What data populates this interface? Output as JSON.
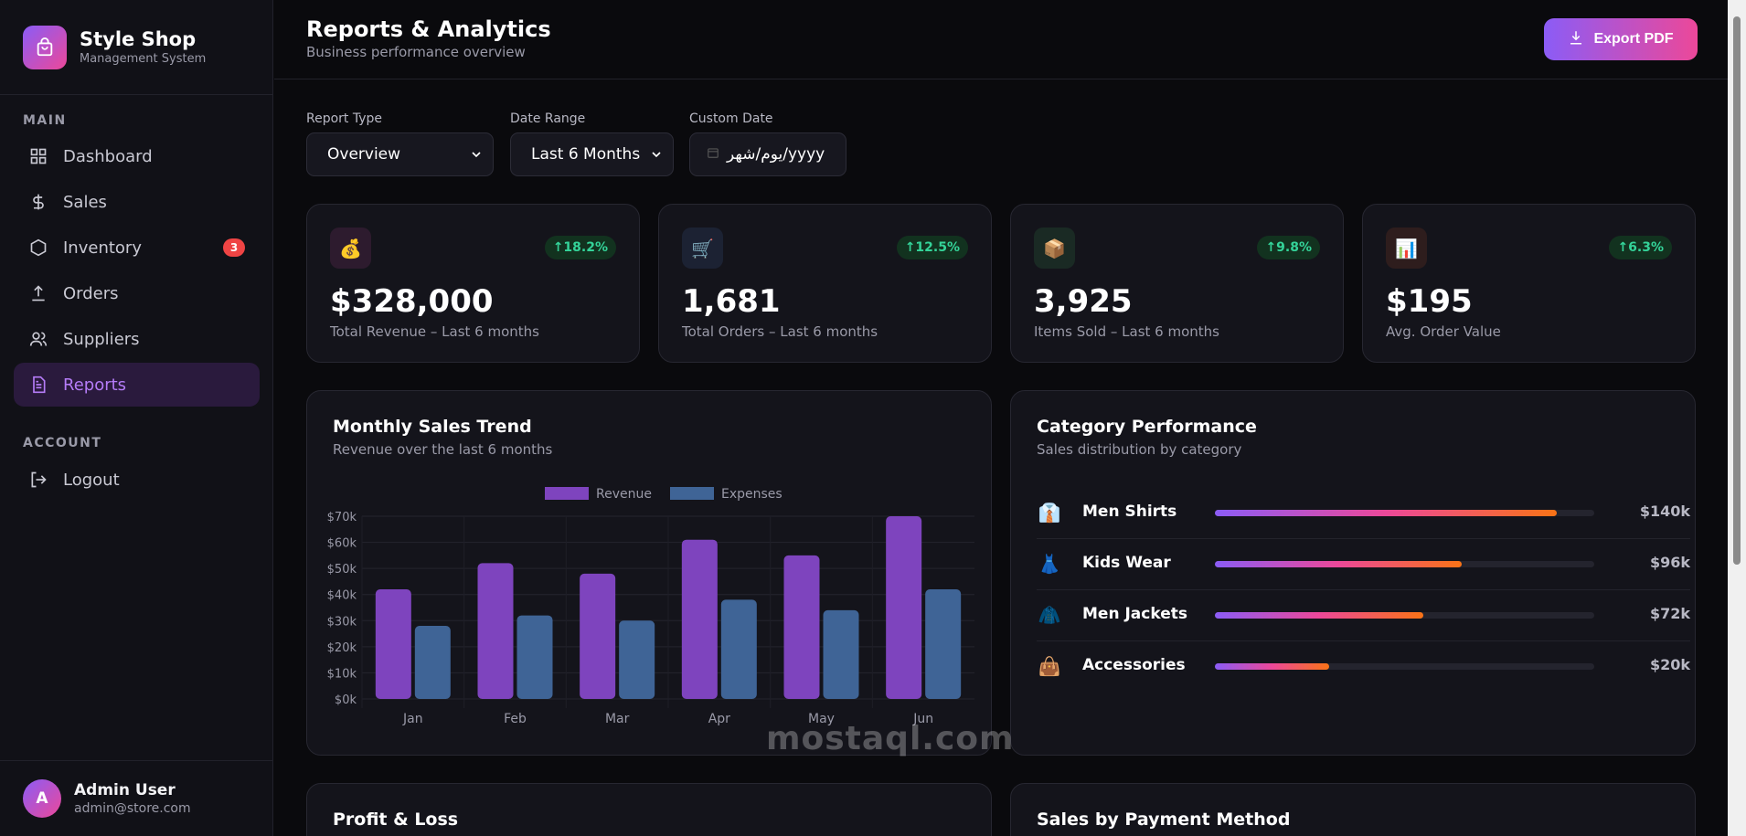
{
  "brand": {
    "name": "Style Shop",
    "subtitle": "Management System"
  },
  "nav": {
    "main_label": "MAIN",
    "account_label": "ACCOUNT",
    "items": [
      {
        "label": "Dashboard",
        "icon": "grid-icon"
      },
      {
        "label": "Sales",
        "icon": "dollar-icon"
      },
      {
        "label": "Inventory",
        "icon": "box-icon",
        "badge": "3"
      },
      {
        "label": "Orders",
        "icon": "upload-icon"
      },
      {
        "label": "Suppliers",
        "icon": "users-icon"
      },
      {
        "label": "Reports",
        "icon": "document-icon",
        "active": true
      }
    ],
    "logout": "Logout"
  },
  "user": {
    "initial": "A",
    "name": "Admin User",
    "email": "admin@store.com"
  },
  "header": {
    "title": "Reports & Analytics",
    "subtitle": "Business performance overview",
    "export_label": "Export PDF"
  },
  "filters": {
    "report_type_label": "Report Type",
    "report_type_value": "Overview",
    "date_range_label": "Date Range",
    "date_range_value": "Last 6 Months",
    "custom_date_label": "Custom Date",
    "custom_date_value": "يوم/شهر/yyyy"
  },
  "stats": [
    {
      "icon": "💰",
      "change": "↑18.2%",
      "value": "$328,000",
      "label": "Total Revenue – Last 6 months",
      "bg": "#2d1b2e"
    },
    {
      "icon": "🛒",
      "change": "↑12.5%",
      "value": "1,681",
      "label": "Total Orders – Last 6 months",
      "bg": "#1c2233"
    },
    {
      "icon": "📦",
      "change": "↑9.8%",
      "value": "3,925",
      "label": "Items Sold – Last 6 months",
      "bg": "#1a2a24"
    },
    {
      "icon": "📊",
      "change": "↑6.3%",
      "value": "$195",
      "label": "Avg. Order Value",
      "bg": "#2e1d1d"
    }
  ],
  "sales_trend": {
    "title": "Monthly Sales Trend",
    "subtitle": "Revenue over the last 6 months"
  },
  "chart_data": {
    "type": "bar",
    "categories": [
      "Jan",
      "Feb",
      "Mar",
      "Apr",
      "May",
      "Jun"
    ],
    "series": [
      {
        "name": "Revenue",
        "values": [
          42000,
          52000,
          48000,
          61000,
          55000,
          70000
        ],
        "color": "#7e44be"
      },
      {
        "name": "Expenses",
        "values": [
          28000,
          32000,
          30000,
          38000,
          34000,
          42000
        ],
        "color": "#3f6496"
      }
    ],
    "yticks": [
      "$0k",
      "$10k",
      "$20k",
      "$30k",
      "$40k",
      "$50k",
      "$60k",
      "$70k"
    ],
    "ylim": [
      0,
      70000
    ],
    "legend": "top-center",
    "grid": true
  },
  "category_performance": {
    "title": "Category Performance",
    "subtitle": "Sales distribution by category",
    "items": [
      {
        "icon": "👔",
        "name": "Men Shirts",
        "value": "$140k",
        "share": 0.9
      },
      {
        "icon": "👗",
        "name": "Kids Wear",
        "value": "$96k",
        "share": 0.65
      },
      {
        "icon": "🧥",
        "name": "Men Jackets",
        "value": "$72k",
        "share": 0.55
      },
      {
        "icon": "👜",
        "name": "Accessories",
        "value": "$20k",
        "share": 0.3
      }
    ]
  },
  "profit_loss": {
    "title": "Profit & Loss"
  },
  "payment_method": {
    "title": "Sales by Payment Method"
  },
  "watermark": {
    "text": "mostaql.com"
  }
}
